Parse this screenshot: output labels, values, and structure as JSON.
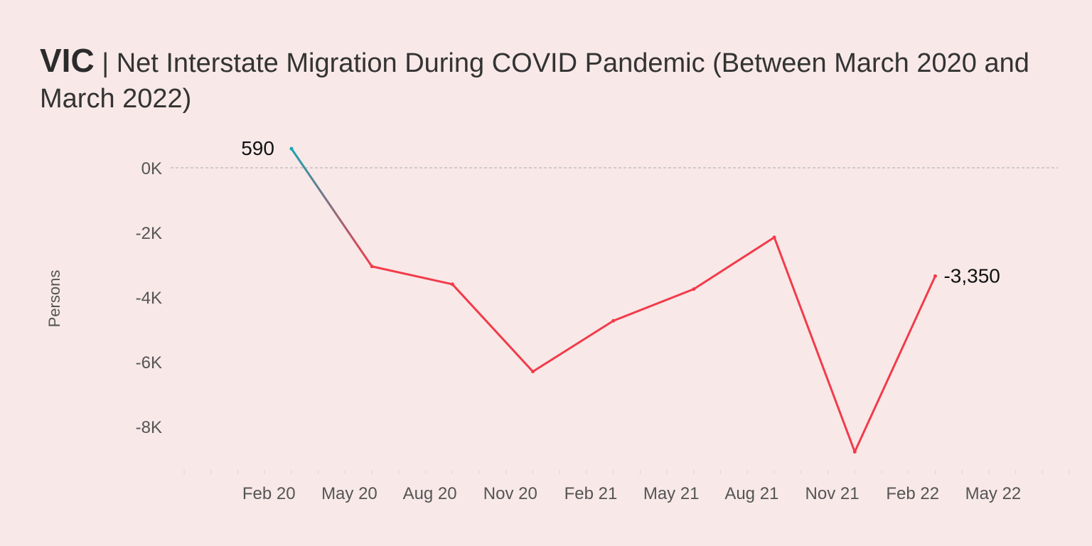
{
  "chart_data": {
    "type": "line",
    "title_state": "VIC",
    "title_separator": " | ",
    "title": "Net Interstate Migration During COVID Pandemic (Between March 2020 and March 2022)",
    "xlabel": "",
    "ylabel": "Persons",
    "ylim": [
      -9000,
      1000
    ],
    "y_ticks": [
      {
        "value": 0,
        "label": "0K"
      },
      {
        "value": -2000,
        "label": "-2K"
      },
      {
        "value": -4000,
        "label": "-4K"
      },
      {
        "value": -6000,
        "label": "-6K"
      },
      {
        "value": -8000,
        "label": "-8K"
      }
    ],
    "x_ticks": [
      {
        "month": 1,
        "label": "Feb 20"
      },
      {
        "month": 4,
        "label": "May 20"
      },
      {
        "month": 7,
        "label": "Aug 20"
      },
      {
        "month": 10,
        "label": "Nov 20"
      },
      {
        "month": 13,
        "label": "Feb 21"
      },
      {
        "month": 16,
        "label": "May 21"
      },
      {
        "month": 19,
        "label": "Aug 21"
      },
      {
        "month": 22,
        "label": "Nov 21"
      },
      {
        "month": 25,
        "label": "Feb 22"
      },
      {
        "month": 28,
        "label": "May 22"
      }
    ],
    "x_range_months": [
      -2,
      31
    ],
    "reference_line": 0,
    "series": [
      {
        "name": "VIC",
        "months": [
          2,
          5,
          8,
          11,
          14,
          17,
          20,
          23,
          26
        ],
        "values": [
          590,
          -3050,
          -3600,
          -6300,
          -4730,
          -3750,
          -2150,
          -8780,
          -3350
        ]
      }
    ],
    "point_labels": [
      {
        "index": 0,
        "text": "590",
        "side": "left"
      },
      {
        "index": 8,
        "text": "-3,350",
        "side": "right"
      }
    ],
    "colors": {
      "positive": "#1aa3b3",
      "negative": "#f23b4a",
      "reference": "#aaaaaa",
      "background": "#f8e8e8"
    }
  }
}
